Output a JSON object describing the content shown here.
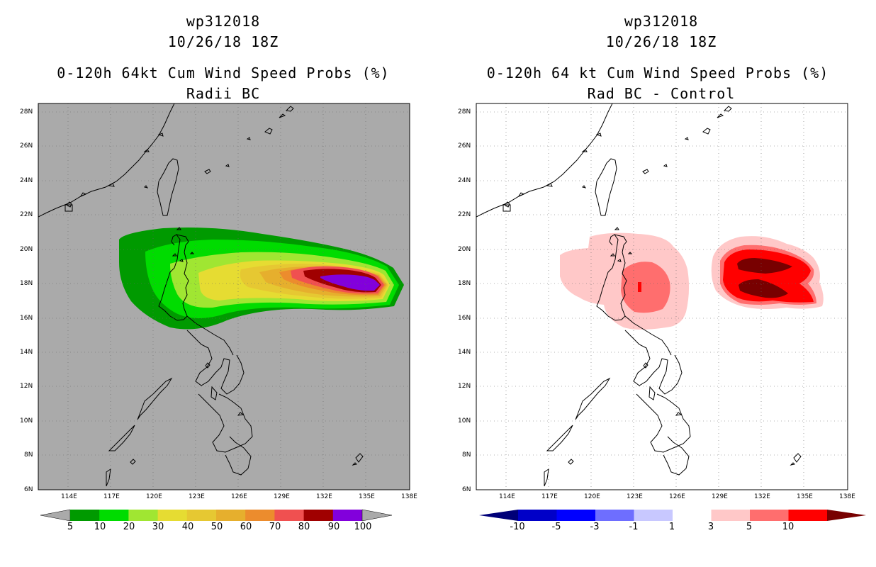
{
  "left": {
    "title_lines": [
      "wp312018",
      "10/26/18 18Z",
      "0-120h 64kt Cum Wind Speed Probs (%)",
      "Radii BC"
    ],
    "background": "#aaaaaa",
    "colorbar": {
      "labels": [
        "5",
        "10",
        "20",
        "30",
        "40",
        "50",
        "60",
        "70",
        "80",
        "90",
        "100"
      ],
      "colors": [
        "#009a00",
        "#00dc00",
        "#a0e632",
        "#e6dc32",
        "#e6c832",
        "#e6af2d",
        "#ec8c2d",
        "#f05050",
        "#a00000",
        "#8200dc"
      ]
    }
  },
  "right": {
    "title_lines": [
      "wp312018",
      "10/26/18 18Z",
      "0-120h 64 kt Cum Wind Speed Probs (%)",
      "Rad BC - Control"
    ],
    "background": "#ffffff",
    "colorbar": {
      "labels": [
        "-10",
        "-5",
        "-3",
        "-1",
        "1",
        "3",
        "5",
        "10"
      ],
      "colors": [
        "#0000c8",
        "#0000ff",
        "#6e6eff",
        "#c8c8ff",
        "#ffffff",
        "#ffc8c8",
        "#ff6e6e",
        "#ff0000"
      ],
      "end_colors": [
        "#000078",
        "#780000"
      ]
    }
  },
  "axes": {
    "lat_labels": [
      "28N",
      "26N",
      "24N",
      "22N",
      "20N",
      "18N",
      "16N",
      "14N",
      "12N",
      "10N",
      "8N",
      "6N"
    ],
    "lon_labels": [
      "114E",
      "117E",
      "120E",
      "123E",
      "126E",
      "129E",
      "132E",
      "135E",
      "138E"
    ],
    "lon_range": [
      112,
      138
    ],
    "lat_range": [
      6,
      28.5
    ]
  }
}
